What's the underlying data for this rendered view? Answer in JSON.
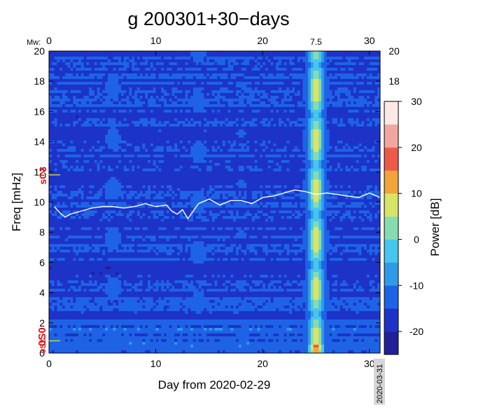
{
  "chart_data": {
    "type": "heatmap",
    "title": "g 200301+30−days",
    "xlabel": "Day from 2020-02-29",
    "ylabel": "Freq [mHz]",
    "colorbar_label": "Power [dB]",
    "xlim": [
      0,
      31
    ],
    "ylim": [
      0,
      20
    ],
    "x_ticks": [
      0,
      10,
      20,
      30
    ],
    "y_ticks": [
      0,
      2,
      4,
      6,
      8,
      10,
      12,
      14,
      16,
      18,
      20
    ],
    "right_y_ticks": [
      18,
      20
    ],
    "top_axis": {
      "label": "Mw:",
      "ticks": [
        0,
        10,
        20,
        30
      ],
      "magnitude_marker": {
        "day": 25,
        "label": "7.5"
      }
    },
    "end_date_label": "2020-03-31",
    "colorbar": {
      "range": [
        -25,
        30
      ],
      "ticks": [
        -20,
        -10,
        0,
        10,
        20,
        30
      ],
      "colors": [
        "#20209a",
        "#1d33c8",
        "#1e63e6",
        "#2f9be8",
        "#46c6ec",
        "#86dcb0",
        "#d8e468",
        "#f2a43a",
        "#ee5a4a",
        "#f2a6a0",
        "#fce9e6"
      ]
    },
    "mode_markers": [
      {
        "label": "0S0",
        "freq": 0.81
      },
      {
        "label": "0S2",
        "freq": 0.31
      },
      {
        "label": "sC3",
        "freq": 11.8
      }
    ],
    "background_db": -16,
    "events": [
      {
        "day": 6,
        "strength_db": 9,
        "fmax": 19.5,
        "label": ""
      },
      {
        "day": 14,
        "strength_db": 9,
        "fmax": 20,
        "label": ""
      },
      {
        "day": 18,
        "strength_db": 5,
        "fmax": 18,
        "label": ""
      },
      {
        "day": 25,
        "strength_db": 30,
        "fmax": 20,
        "label": "7.5"
      },
      {
        "day": 28,
        "strength_db": 2,
        "fmax": 16,
        "label": ""
      }
    ],
    "mean_level_curve": {
      "days": [
        0.5,
        1,
        1.5,
        2,
        3,
        4,
        5,
        6,
        7,
        8,
        9,
        10,
        11,
        11.5,
        12,
        12.5,
        13,
        13.5,
        14,
        15,
        16,
        17,
        18,
        19,
        20,
        21,
        22,
        23,
        24,
        25,
        26,
        27,
        28,
        29,
        30,
        31
      ],
      "freq": [
        9.7,
        9.3,
        9.0,
        9.2,
        9.4,
        9.6,
        9.7,
        9.7,
        9.6,
        9.7,
        9.9,
        9.7,
        9.8,
        9.4,
        9.2,
        9.5,
        8.9,
        9.4,
        9.9,
        10.2,
        9.8,
        10.1,
        10.1,
        9.9,
        10.3,
        10.4,
        10.6,
        10.8,
        10.7,
        10.5,
        10.6,
        10.5,
        10.4,
        10.3,
        10.6,
        10.3
      ]
    }
  }
}
